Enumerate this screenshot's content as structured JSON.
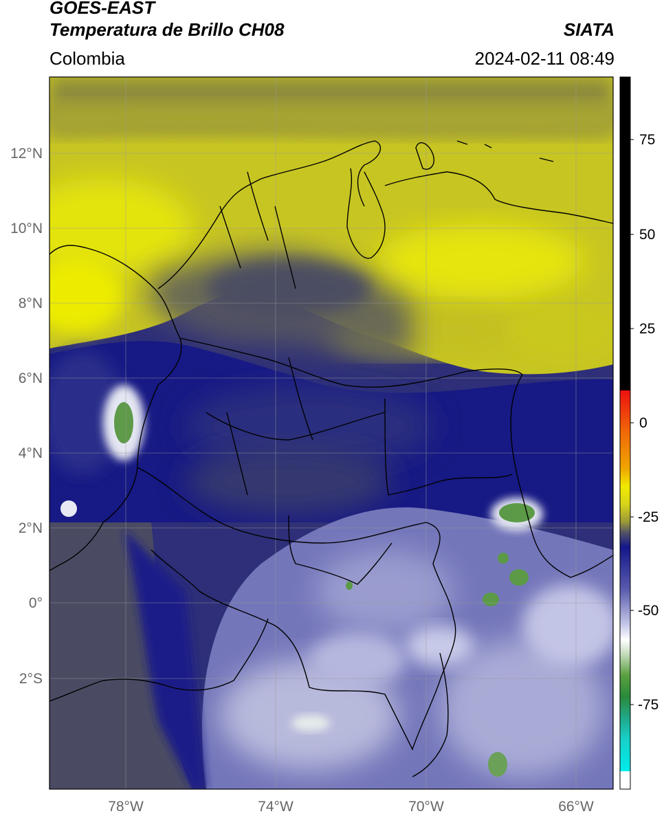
{
  "header": {
    "satellite": "GOES-EAST",
    "product": "Temperatura de Brillo CH08",
    "organization": "SIATA",
    "region": "Colombia",
    "timestamp": "2024-02-11 08:49"
  },
  "map": {
    "lon_range": [
      -80,
      -65
    ],
    "lat_range": [
      -5,
      14
    ],
    "lon_ticks": [
      {
        "value": -78,
        "label": "78°W"
      },
      {
        "value": -74,
        "label": "74°W"
      },
      {
        "value": -70,
        "label": "70°W"
      },
      {
        "value": -66,
        "label": "66°W"
      }
    ],
    "lat_ticks": [
      {
        "value": 12,
        "label": "12°N"
      },
      {
        "value": 10,
        "label": "10°N"
      },
      {
        "value": 8,
        "label": "8°N"
      },
      {
        "value": 6,
        "label": "6°N"
      },
      {
        "value": 4,
        "label": "4°N"
      },
      {
        "value": 2,
        "label": "2°N"
      },
      {
        "value": 0,
        "label": "0°"
      },
      {
        "value": -2,
        "label": "2°S"
      }
    ],
    "colors": {
      "yellow_dry": "#d6d41e",
      "olive_dark": "#8d8b3a",
      "gray_mid": "#54556a",
      "navy_cold": "#1a1c86",
      "lavender": "#8a8cc6",
      "white_cold": "#e6e8f4",
      "green_coldest": "#5c9a4a"
    }
  },
  "colorbar": {
    "range": [
      -95,
      90
    ],
    "ticks": [
      {
        "value": 75,
        "label": "75"
      },
      {
        "value": 50,
        "label": "50"
      },
      {
        "value": 25,
        "label": "25"
      },
      {
        "value": 0,
        "label": "0"
      },
      {
        "value": -25,
        "label": "-25"
      },
      {
        "value": -50,
        "label": "-50"
      },
      {
        "value": -75,
        "label": "-75"
      }
    ]
  }
}
